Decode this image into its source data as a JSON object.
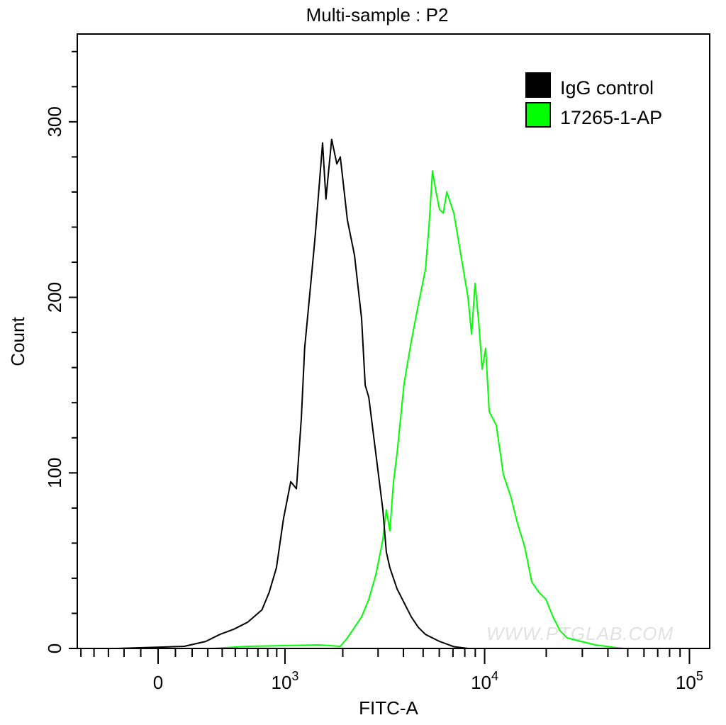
{
  "chart_data": {
    "type": "line",
    "title": "Multi-sample : P2",
    "xlabel": "FITC-A",
    "ylabel": "Count",
    "x_scale": "biexponential",
    "xlim": [
      -500,
      100000
    ],
    "ylim": [
      0,
      350
    ],
    "x_ticks": [
      {
        "value": 0,
        "label": "0",
        "exp": ""
      },
      {
        "value": 1000,
        "label": "10",
        "exp": "3"
      },
      {
        "value": 10000,
        "label": "10",
        "exp": "4"
      },
      {
        "value": 100000,
        "label": "10",
        "exp": "5"
      }
    ],
    "y_ticks": [
      {
        "value": 0,
        "label": "0"
      },
      {
        "value": 100,
        "label": "100"
      },
      {
        "value": 200,
        "label": "200"
      },
      {
        "value": 300,
        "label": "300"
      }
    ],
    "grid": false,
    "legend_position": "top-right",
    "watermark": "WWW.PTGLAB.COM",
    "series": [
      {
        "name": "IgG control",
        "color": "#000000",
        "x": [
          -244,
          28,
          152,
          286,
          383,
          489,
          606,
          740,
          816,
          897,
          982,
          1075,
          1153,
          1224,
          1275,
          1392,
          1450,
          1580,
          1643,
          1757,
          1866,
          1943,
          2110,
          2290,
          2485,
          2590,
          2698,
          2923,
          3167,
          3296,
          3431,
          3722,
          4034,
          4372,
          4737,
          5133,
          6018,
          7068,
          8290
        ],
        "y": [
          0,
          0.8,
          1.2,
          4,
          8,
          11,
          15,
          22,
          32,
          46,
          74,
          95,
          91,
          131,
          171,
          215,
          236,
          288,
          256,
          290,
          276,
          280,
          244,
          224,
          188,
          150,
          143,
          111,
          79,
          55,
          46,
          34,
          26,
          18,
          12,
          8,
          4,
          1,
          0
        ]
      },
      {
        "name": "17265-1-AP",
        "color": "#00ff00",
        "x": [
          333,
          606,
          982,
          1512,
          1943,
          2110,
          2290,
          2485,
          2698,
          2923,
          3167,
          3296,
          3431,
          3574,
          3722,
          4034,
          4372,
          4737,
          5133,
          5340,
          5557,
          5786,
          6018,
          6275,
          6530,
          7068,
          7654,
          8290,
          8630,
          8980,
          9340,
          9725,
          10120,
          10530,
          11410,
          12350,
          13380,
          14490,
          15690,
          16990,
          18400,
          19930,
          21580,
          23370,
          25300,
          29670,
          34800,
          44150,
          47830
        ],
        "y": [
          0,
          1.2,
          1.6,
          2,
          1.2,
          6,
          12,
          18,
          28,
          42,
          62,
          79,
          67,
          95,
          111,
          151,
          175,
          196,
          216,
          240,
          272,
          260,
          250,
          248,
          260,
          248,
          224,
          200,
          179,
          208,
          187,
          159,
          171,
          135,
          127,
          99,
          87,
          71,
          58,
          38,
          32,
          28,
          18,
          10,
          6,
          4,
          2,
          0.4,
          0
        ]
      }
    ]
  }
}
